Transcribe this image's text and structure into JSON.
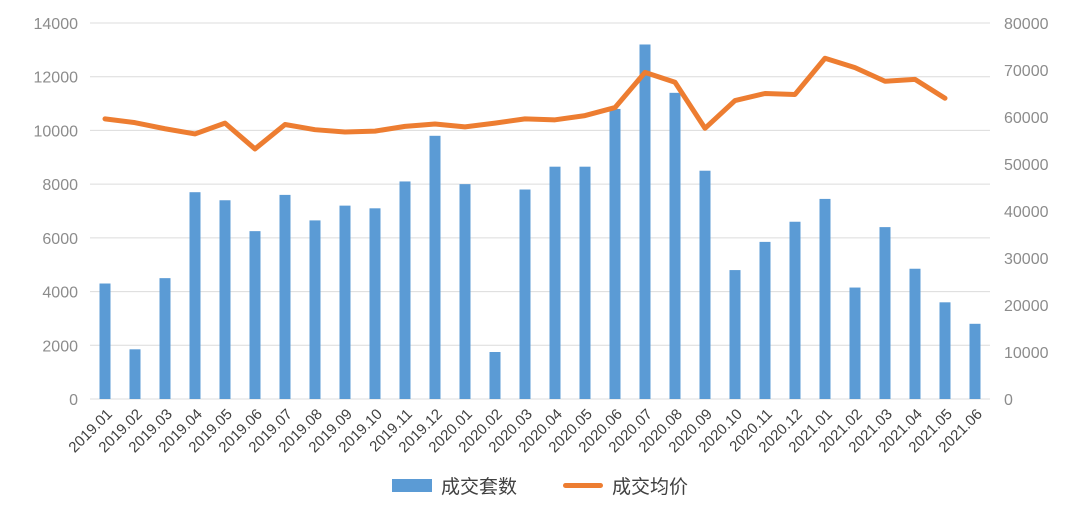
{
  "chart_data": {
    "type": "bar+line combo",
    "title": "",
    "categories": [
      "2019.01",
      "2019.02",
      "2019.03",
      "2019.04",
      "2019.05",
      "2019.06",
      "2019.07",
      "2019.08",
      "2019.09",
      "2019.10",
      "2019.11",
      "2019.12",
      "2020.01",
      "2020.02",
      "2020.03",
      "2020.04",
      "2020.05",
      "2020.06",
      "2020.07",
      "2020.08",
      "2020.09",
      "2020.10",
      "2020.11",
      "2020.12",
      "2021.01",
      "2021.02",
      "2021.03",
      "2021.04",
      "2021.05",
      "2021.06"
    ],
    "series": [
      {
        "name": "成交套数",
        "type": "bar",
        "axis": "left",
        "color": "#5B9BD5",
        "values": [
          4300,
          1850,
          4500,
          7700,
          7400,
          6250,
          7600,
          6650,
          7200,
          7100,
          8100,
          9800,
          8000,
          1750,
          7800,
          8650,
          8650,
          10800,
          13200,
          11400,
          8500,
          4800,
          5850,
          6600,
          7450,
          4150,
          6400,
          4850,
          3600,
          2800
        ]
      },
      {
        "name": "成交均价",
        "type": "line",
        "axis": "right",
        "color": "#ED7D31",
        "values": [
          59600,
          58800,
          57500,
          56400,
          58700,
          53200,
          58400,
          57300,
          56800,
          57000,
          58000,
          58500,
          57900,
          58700,
          59600,
          59400,
          60300,
          62000,
          69500,
          67400,
          57600,
          63500,
          65000,
          64800,
          72500,
          70500,
          67600,
          68000,
          64000,
          null
        ]
      }
    ],
    "left_axis": {
      "min": 0,
      "max": 14000,
      "step": 2000,
      "tick_labels": [
        "0",
        "2000",
        "4000",
        "6000",
        "8000",
        "10000",
        "12000",
        "14000"
      ]
    },
    "right_axis": {
      "min": 0,
      "max": 80000,
      "step": 10000,
      "tick_labels": [
        "0",
        "10000",
        "20000",
        "30000",
        "40000",
        "50000",
        "60000",
        "70000",
        "80000"
      ]
    },
    "grid": true,
    "legend_position": "bottom",
    "x_label_rotation": -45
  },
  "legend": {
    "items": [
      {
        "label": "成交套数",
        "shape": "bar",
        "color": "#5B9BD5"
      },
      {
        "label": "成交均价",
        "shape": "line",
        "color": "#ED7D31"
      }
    ]
  },
  "colors": {
    "bar": "#5B9BD5",
    "line": "#ED7D31",
    "grid": "#DCDCDC",
    "axis_number_text": "#8C8C8C",
    "category_text": "#404040",
    "background": "#FFFFFF"
  }
}
